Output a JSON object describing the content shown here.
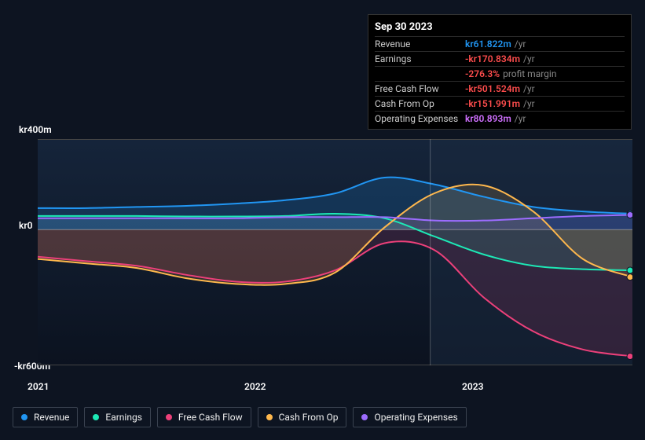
{
  "chart": {
    "type": "area",
    "background_color": "#0d1421",
    "plot_bg_top": "rgba(30,45,70,0.25)",
    "plot_bg_bottom": "rgba(10,15,25,0.6)",
    "grid_color": "#666",
    "baseline_color": "#888",
    "y_axis": {
      "min": -600,
      "max": 400,
      "ticks": [
        {
          "value": 400,
          "label": "kr400m"
        },
        {
          "value": 0,
          "label": "kr0"
        },
        {
          "value": -600,
          "label": "-kr600m"
        }
      ]
    },
    "x_axis": {
      "labels": [
        "2021",
        "2022",
        "2023"
      ],
      "positions": [
        0.04,
        0.4,
        0.75
      ]
    },
    "cursor_x": 0.66,
    "highlight_from_x": 0.66,
    "series": [
      {
        "id": "revenue",
        "label": "Revenue",
        "color": "#2196f3",
        "fill_opacity": 0.18,
        "values": [
          95,
          95,
          100,
          105,
          115,
          130,
          160,
          230,
          200,
          145,
          100,
          80,
          70
        ]
      },
      {
        "id": "earnings",
        "label": "Earnings",
        "color": "#1de9b6",
        "fill_opacity": 0.14,
        "values": [
          60,
          60,
          60,
          58,
          58,
          60,
          70,
          50,
          -30,
          -110,
          -160,
          -175,
          -180
        ]
      },
      {
        "id": "fcf",
        "label": "Free Cash Flow",
        "color": "#ec407a",
        "fill_opacity": 0.14,
        "values": [
          -120,
          -140,
          -160,
          -200,
          -230,
          -230,
          -180,
          -60,
          -90,
          -300,
          -450,
          -530,
          -560
        ]
      },
      {
        "id": "cash_op",
        "label": "Cash From Op",
        "color": "#ffb84d",
        "fill_opacity": 0.14,
        "values": [
          -130,
          -150,
          -170,
          -215,
          -240,
          -240,
          -190,
          10,
          160,
          195,
          80,
          -130,
          -210
        ]
      },
      {
        "id": "opex",
        "label": "Operating Expenses",
        "color": "#9c6cff",
        "fill_opacity": 0.14,
        "values": [
          50,
          50,
          50,
          50,
          50,
          55,
          55,
          55,
          40,
          40,
          50,
          60,
          65
        ]
      }
    ]
  },
  "tooltip": {
    "title": "Sep 30 2023",
    "rows": [
      {
        "label": "Revenue",
        "value": "kr61.822m",
        "color": "#2196f3",
        "unit": "/yr"
      },
      {
        "label": "Earnings",
        "value": "-kr170.834m",
        "color": "#ff4d4d",
        "unit": "/yr"
      },
      {
        "label": "",
        "value": "-276.3%",
        "color": "#ff4d4d",
        "unit": "profit margin"
      },
      {
        "label": "Free Cash Flow",
        "value": "-kr501.524m",
        "color": "#ff4d4d",
        "unit": "/yr"
      },
      {
        "label": "Cash From Op",
        "value": "-kr151.991m",
        "color": "#ff4d4d",
        "unit": "/yr"
      },
      {
        "label": "Operating Expenses",
        "value": "kr80.893m",
        "color": "#d070ff",
        "unit": "/yr"
      }
    ]
  },
  "legend": {
    "border_color": "#3a4250"
  }
}
